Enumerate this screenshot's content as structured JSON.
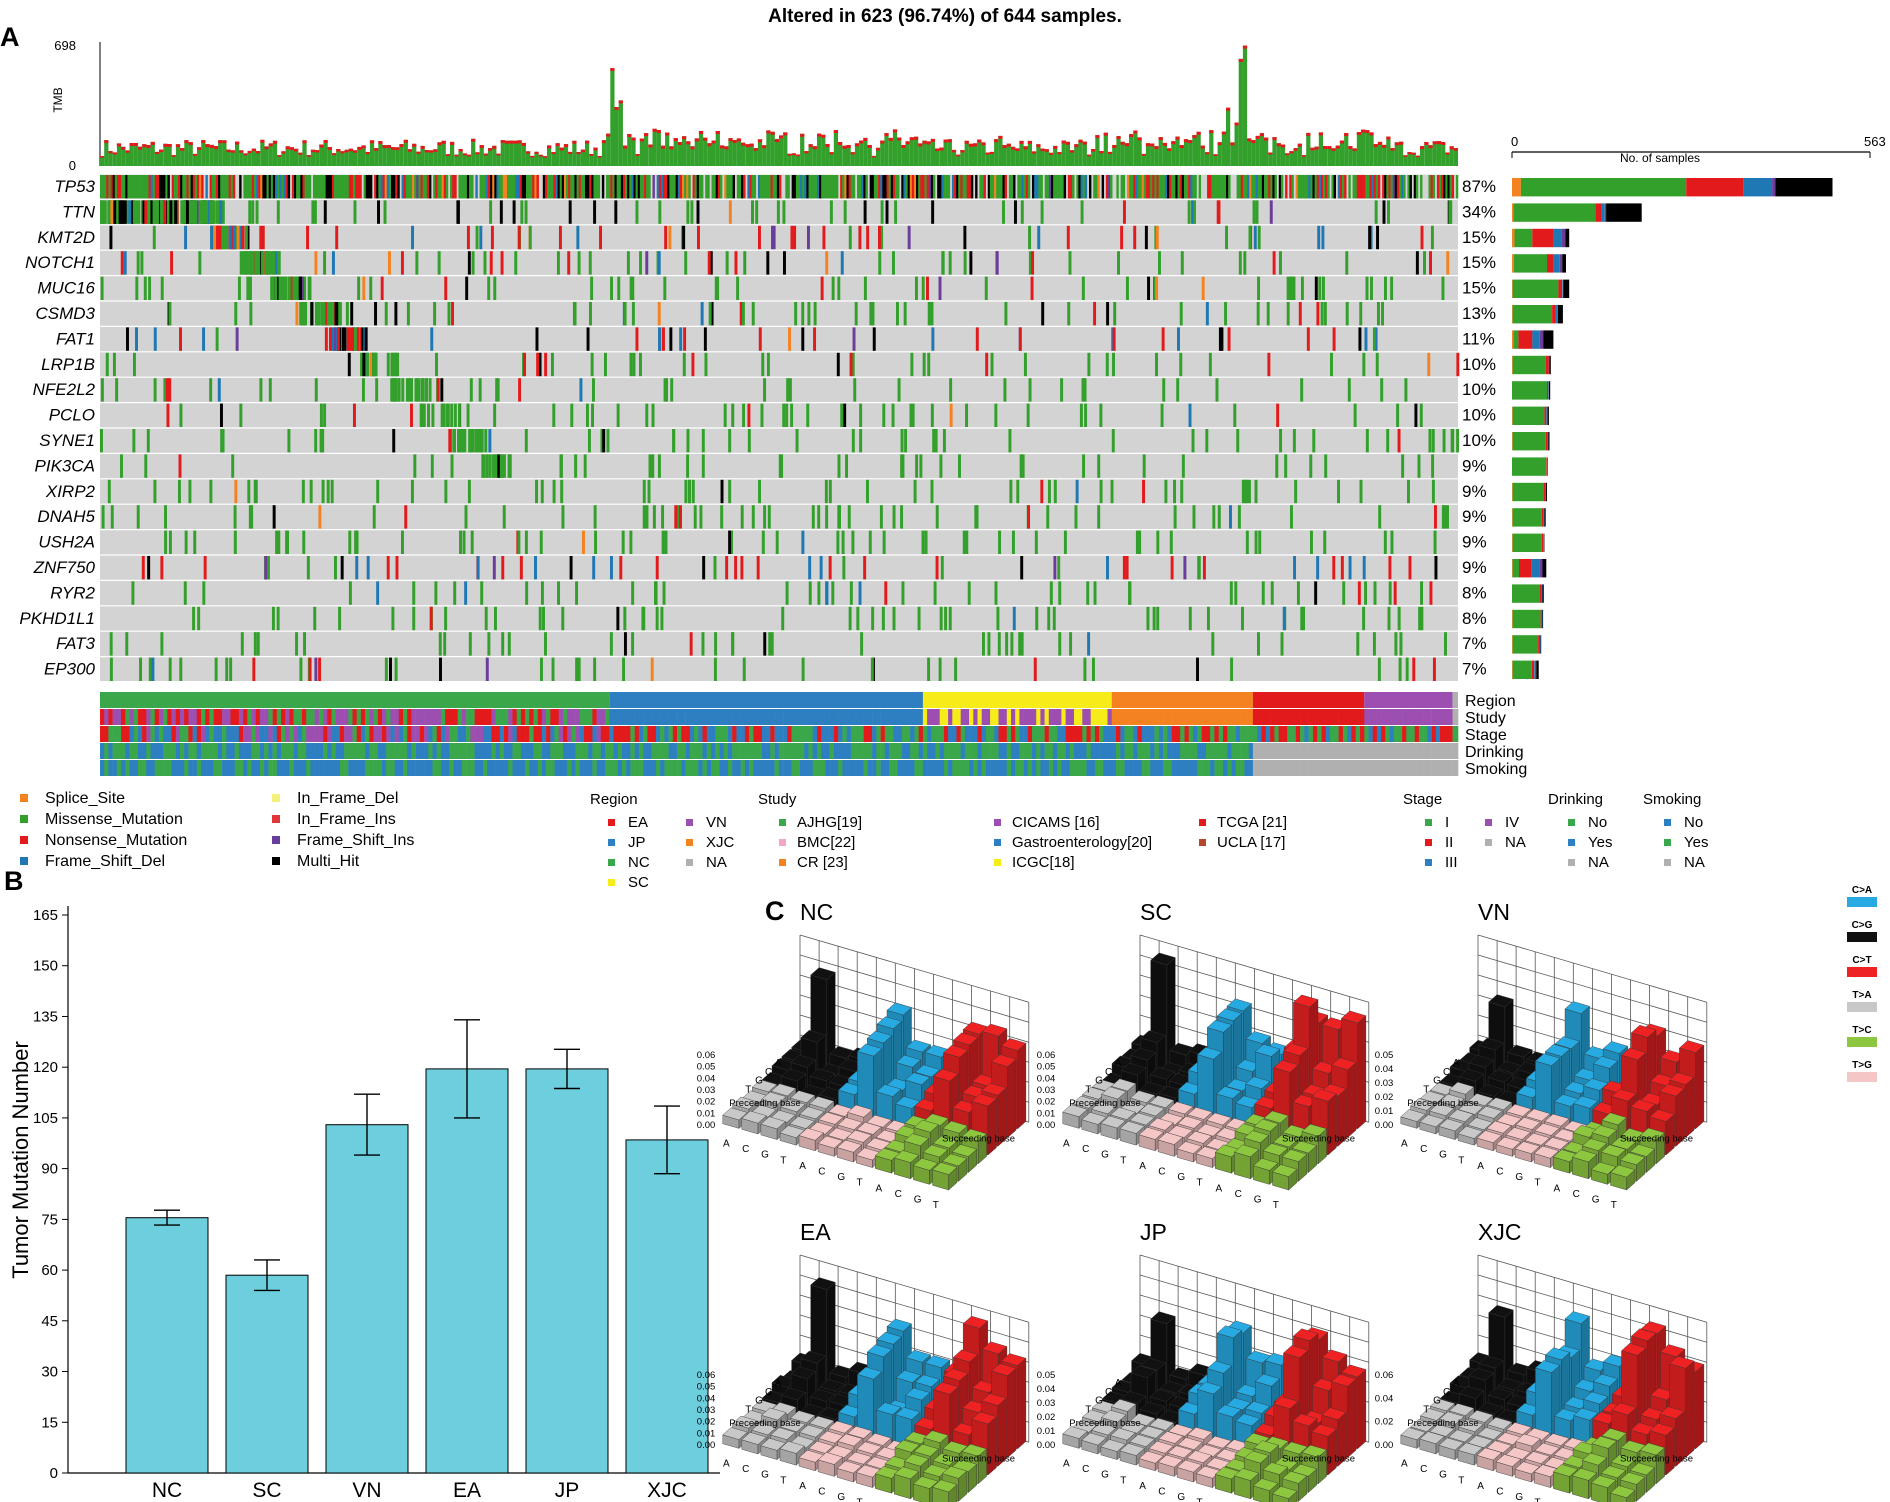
{
  "panel_labels": {
    "a": "A",
    "b": "B",
    "c": "C"
  },
  "colors": {
    "splice": "#f58220",
    "missense": "#33a02c",
    "nonsense": "#e31a1c",
    "frameshift_del": "#1f78b4",
    "inframe_del": "#f4f07c",
    "inframe_ins": "#e0363a",
    "frameshift_ins": "#6a3d9a",
    "multi": "#000000",
    "bg": "#d3d3d3",
    "bar_b": "#6dcedd",
    "EA": "#e31a1c",
    "JP": "#2e7fc1",
    "NC": "#3aa84a",
    "SC": "#f5ec1a",
    "VN": "#9c4fb0",
    "XJC": "#f58220",
    "NA": "#b0b0b0",
    "ca": "#27aae1",
    "cg": "#111111",
    "ct": "#ee2222",
    "ta": "#c8c8c8",
    "tc": "#8dc63f",
    "tg": "#f5c6c6"
  },
  "chart_data": [
    {
      "type": "heatmap",
      "panel": "A",
      "title": "Altered in 623 (96.74%) of 644 samples.",
      "tmb_label": "TMB",
      "tmb_ticks": [
        "698",
        "0"
      ],
      "tmb_max": 698,
      "genes": [
        "TP53",
        "TTN",
        "KMT2D",
        "NOTCH1",
        "MUC16",
        "CSMD3",
        "FAT1",
        "LRP1B",
        "NFE2L2",
        "PCLO",
        "SYNE1",
        "PIK3CA",
        "XIRP2",
        "DNAH5",
        "USH2A",
        "ZNF750",
        "RYR2",
        "PKHD1L1",
        "FAT3",
        "EP300"
      ],
      "percent": [
        "87%",
        "34%",
        "15%",
        "15%",
        "15%",
        "13%",
        "11%",
        "10%",
        "10%",
        "10%",
        "10%",
        "9%",
        "9%",
        "9%",
        "9%",
        "9%",
        "8%",
        "8%",
        "7%",
        "7%"
      ],
      "sample_count": 644,
      "altered_count": 623,
      "samples_axis": {
        "label": "No. of samples",
        "min": "0",
        "max": "563"
      },
      "gene_counts": [
        {
          "splice": 14,
          "missense": 260,
          "nonsense": 90,
          "frameshift_del": 45,
          "frameshift_ins": 5,
          "multi": 90
        },
        {
          "splice": 2,
          "missense": 130,
          "nonsense": 8,
          "frameshift_del": 6,
          "frameshift_ins": 2,
          "multi": 56
        },
        {
          "splice": 4,
          "missense": 28,
          "nonsense": 34,
          "frameshift_del": 12,
          "frameshift_ins": 6,
          "multi": 6
        },
        {
          "splice": 3,
          "missense": 52,
          "nonsense": 10,
          "frameshift_del": 10,
          "frameshift_ins": 4,
          "multi": 6
        },
        {
          "splice": 1,
          "missense": 72,
          "nonsense": 6,
          "frameshift_del": 1,
          "frameshift_ins": 1,
          "multi": 9
        },
        {
          "splice": 1,
          "missense": 62,
          "nonsense": 6,
          "frameshift_del": 2,
          "frameshift_ins": 1,
          "multi": 8
        },
        {
          "splice": 2,
          "missense": 8,
          "nonsense": 22,
          "frameshift_del": 12,
          "frameshift_ins": 5,
          "multi": 16
        },
        {
          "splice": 1,
          "missense": 52,
          "nonsense": 5,
          "frameshift_del": 1,
          "frameshift_ins": 0,
          "multi": 2
        },
        {
          "splice": 0,
          "missense": 55,
          "nonsense": 2,
          "frameshift_del": 1,
          "frameshift_ins": 0,
          "multi": 2
        },
        {
          "splice": 1,
          "missense": 50,
          "nonsense": 3,
          "frameshift_del": 2,
          "frameshift_ins": 0,
          "multi": 2
        },
        {
          "splice": 1,
          "missense": 52,
          "nonsense": 3,
          "frameshift_del": 1,
          "frameshift_ins": 0,
          "multi": 2
        },
        {
          "splice": 0,
          "missense": 54,
          "nonsense": 1,
          "frameshift_del": 0,
          "frameshift_ins": 0,
          "multi": 1
        },
        {
          "splice": 1,
          "missense": 48,
          "nonsense": 3,
          "frameshift_del": 1,
          "frameshift_ins": 0,
          "multi": 2
        },
        {
          "splice": 1,
          "missense": 46,
          "nonsense": 3,
          "frameshift_del": 1,
          "frameshift_ins": 0,
          "multi": 2
        },
        {
          "splice": 1,
          "missense": 46,
          "nonsense": 2,
          "frameshift_del": 1,
          "frameshift_ins": 0,
          "multi": 1
        },
        {
          "splice": 1,
          "missense": 10,
          "nonsense": 20,
          "frameshift_del": 12,
          "frameshift_ins": 5,
          "multi": 6
        },
        {
          "splice": 0,
          "missense": 44,
          "nonsense": 3,
          "frameshift_del": 1,
          "frameshift_ins": 0,
          "multi": 2
        },
        {
          "splice": 1,
          "missense": 44,
          "nonsense": 2,
          "frameshift_del": 1,
          "frameshift_ins": 0,
          "multi": 1
        },
        {
          "splice": 1,
          "missense": 40,
          "nonsense": 3,
          "frameshift_del": 1,
          "frameshift_ins": 0,
          "multi": 1
        },
        {
          "splice": 1,
          "missense": 30,
          "nonsense": 4,
          "frameshift_del": 2,
          "frameshift_ins": 1,
          "multi": 4
        }
      ],
      "annotation_tracks": [
        "Region",
        "Study",
        "Stage",
        "Drinking",
        "Smoking"
      ],
      "region_groups": [
        {
          "region": "NC",
          "fraction": 0.375
        },
        {
          "region": "JP",
          "fraction": 0.231
        },
        {
          "region": "SC",
          "fraction": 0.139
        },
        {
          "region": "XJC",
          "fraction": 0.104
        },
        {
          "region": "EA",
          "fraction": 0.082
        },
        {
          "region": "VN",
          "fraction": 0.065
        },
        {
          "region": "NA",
          "fraction": 0.004
        }
      ],
      "legend": {
        "variants": [
          "Splice_Site",
          "Missense_Mutation",
          "Nonsense_Mutation",
          "Frame_Shift_Del",
          "In_Frame_Del",
          "In_Frame_Ins",
          "Frame_Shift_Ins",
          "Multi_Hit"
        ],
        "region_title": "Region",
        "regions": [
          "EA",
          "JP",
          "NC",
          "SC",
          "VN",
          "XJC",
          "NA"
        ],
        "study_title": "Study",
        "studies": [
          "AJHG[19]",
          "BMC[22]",
          "CR [23]",
          "CICAMS [16]",
          "Gastroenterology[20]",
          "ICGC[18]",
          "TCGA [21]",
          "UCLA [17]"
        ],
        "stage_title": "Stage",
        "stages": [
          "I",
          "II",
          "III",
          "IV",
          "NA"
        ],
        "drinking_title": "Drinking",
        "drinking": [
          "No",
          "Yes",
          "NA"
        ],
        "smoking_title": "Smoking",
        "smoking": [
          "No",
          "Yes",
          "NA"
        ]
      }
    },
    {
      "type": "bar",
      "panel": "B",
      "ylabel": "Tumor Mutation Number",
      "categories": [
        "NC",
        "SC",
        "VN",
        "EA",
        "JP",
        "XJC"
      ],
      "values": [
        75.5,
        58.5,
        103,
        119.5,
        119.5,
        98.5
      ],
      "errors": [
        2.2,
        4.5,
        9,
        14.5,
        5.8,
        10
      ],
      "ylim": [
        0,
        165
      ],
      "yticks": [
        "0",
        "15",
        "30",
        "45",
        "60",
        "75",
        "90",
        "105",
        "120",
        "135",
        "150",
        "165"
      ]
    },
    {
      "type": "bar",
      "panel": "C",
      "subtype": "3d-bar-mutation-spectrum",
      "axis_labels": {
        "preceding": "Preceeding base",
        "succeeding": "Succeeding base"
      },
      "bases": [
        "A",
        "C",
        "G",
        "T"
      ],
      "mutation_classes": [
        "C>A",
        "C>G",
        "C>T",
        "T>A",
        "T>C",
        "T>G"
      ],
      "panels": [
        {
          "name": "NC",
          "zticks": [
            "0.06",
            "0.05",
            "0.04",
            "0.03",
            "0.02",
            "0.01",
            "0.00"
          ]
        },
        {
          "name": "SC",
          "zticks": [
            "0.06",
            "0.05",
            "0.04",
            "0.03",
            "0.02",
            "0.01",
            "0.00"
          ]
        },
        {
          "name": "VN",
          "zticks": [
            "0.05",
            "0.04",
            "0.03",
            "0.02",
            "0.01",
            "0.00"
          ]
        },
        {
          "name": "EA",
          "zticks": [
            "0.06",
            "0.05",
            "0.04",
            "0.03",
            "0.02",
            "0.01",
            "0.00"
          ]
        },
        {
          "name": "JP",
          "zticks": [
            "0.05",
            "0.04",
            "0.03",
            "0.02",
            "0.01",
            "0.00"
          ]
        },
        {
          "name": "XJC",
          "zticks": [
            "0.06",
            "0.04",
            "0.02",
            "0.00"
          ]
        }
      ]
    }
  ]
}
